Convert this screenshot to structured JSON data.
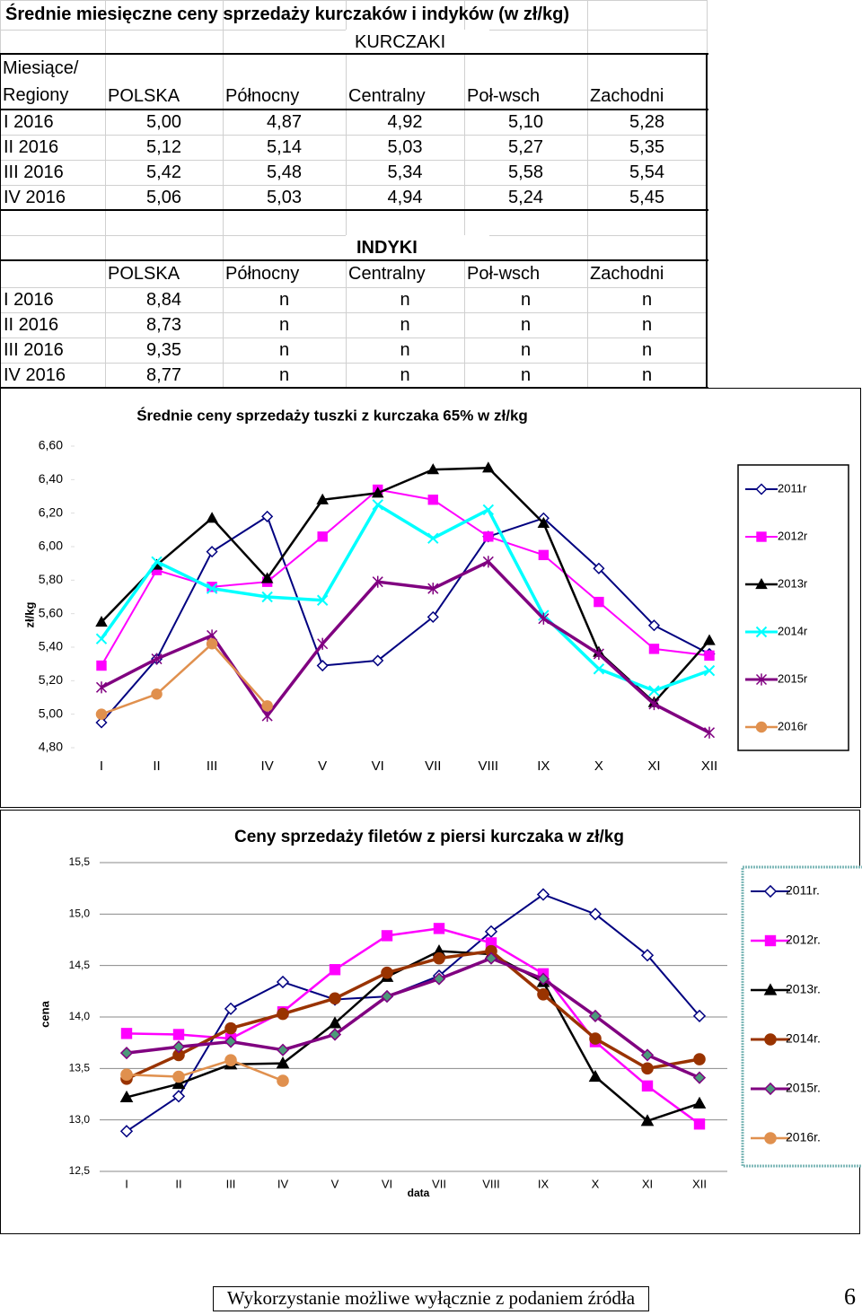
{
  "title": "Średnie miesięczne ceny sprzedaży kurczaków  i indyków (w zł/kg)",
  "sections": [
    {
      "heading": "KURCZAKI",
      "corner": "Miesiące/ Regiony",
      "columns": [
        "POLSKA",
        "Północny",
        "Centralny",
        "Poł-wsch",
        "Zachodni"
      ],
      "rows": [
        [
          "I 2016",
          "5,00",
          "4,87",
          "4,92",
          "5,10",
          "5,28"
        ],
        [
          "II 2016",
          "5,12",
          "5,14",
          "5,03",
          "5,27",
          "5,35"
        ],
        [
          "III 2016",
          "5,42",
          "5,48",
          "5,34",
          "5,58",
          "5,54"
        ],
        [
          "IV 2016",
          "5,06",
          "5,03",
          "4,94",
          "5,24",
          "5,45"
        ]
      ]
    },
    {
      "heading": "INDYKI",
      "columns": [
        "POLSKA",
        "Północny",
        "Centralny",
        "Poł-wsch",
        "Zachodni"
      ],
      "rows": [
        [
          "I 2016",
          "8,84",
          "n",
          "n",
          "n",
          "n"
        ],
        [
          "II 2016",
          "8,73",
          "n",
          "n",
          "n",
          "n"
        ],
        [
          "III 2016",
          "9,35",
          "n",
          "n",
          "n",
          "n"
        ],
        [
          "IV 2016",
          "8,77",
          "n",
          "n",
          "n",
          "n"
        ]
      ]
    }
  ],
  "chart_data": [
    {
      "type": "line",
      "title": "Średnie ceny sprzedaży tuszki z kurczaka 65% w zł/kg",
      "y_label": "zł/kg",
      "categories": [
        "I",
        "II",
        "III",
        "IV",
        "V",
        "VI",
        "VII",
        "VIII",
        "IX",
        "X",
        "XI",
        "XII"
      ],
      "ylim": [
        4.8,
        6.6
      ],
      "yticks": [
        {
          "value": 4.8,
          "label": "4,80"
        },
        {
          "value": 5.0,
          "label": "5,00"
        },
        {
          "value": 5.2,
          "label": "5,20"
        },
        {
          "value": 5.4,
          "label": "5,40"
        },
        {
          "value": 5.6,
          "label": "5,60"
        },
        {
          "value": 5.8,
          "label": "5,80"
        },
        {
          "value": 6.0,
          "label": "6,00"
        },
        {
          "value": 6.2,
          "label": "6,20"
        },
        {
          "value": 6.4,
          "label": "6,40"
        },
        {
          "value": 6.6,
          "label": "6,60"
        }
      ],
      "grid": false,
      "legend": "right",
      "series": [
        {
          "name": "2011r",
          "color": "#000080",
          "marker": "diamond",
          "line_width": 2,
          "values": [
            4.95,
            5.33,
            5.97,
            6.18,
            5.29,
            5.32,
            5.58,
            6.06,
            6.17,
            5.87,
            5.53,
            5.36
          ]
        },
        {
          "name": "2012r",
          "color": "#ff00ff",
          "marker": "square",
          "line_width": 2,
          "values": [
            5.29,
            5.86,
            5.76,
            5.79,
            6.06,
            6.34,
            6.28,
            6.06,
            5.95,
            5.67,
            5.39,
            5.35
          ]
        },
        {
          "name": "2013r",
          "color": "#000000",
          "marker": "triangle",
          "line_width": 2.5,
          "values": [
            5.55,
            5.89,
            6.17,
            5.81,
            6.28,
            6.32,
            6.46,
            6.47,
            6.14,
            5.37,
            5.07,
            5.44
          ]
        },
        {
          "name": "2014r",
          "color": "#00ffff",
          "marker": "x",
          "line_width": 3.5,
          "values": [
            5.45,
            5.91,
            5.75,
            5.7,
            5.68,
            6.25,
            6.05,
            6.22,
            5.59,
            5.27,
            5.14,
            5.26
          ]
        },
        {
          "name": "2015r",
          "color": "#800080",
          "marker": "star",
          "line_width": 3.5,
          "values": [
            5.16,
            5.33,
            5.47,
            4.99,
            5.42,
            5.79,
            5.75,
            5.91,
            5.57,
            5.36,
            5.06,
            4.89
          ]
        },
        {
          "name": "2016r",
          "color": "#e0904e",
          "marker": "circle",
          "line_width": 2.5,
          "values": [
            5.0,
            5.12,
            5.42,
            5.05,
            null,
            null,
            null,
            null,
            null,
            null,
            null,
            null
          ]
        }
      ]
    },
    {
      "type": "line",
      "title": "Ceny sprzedaży filetów z piersi kurczaka w zł/kg",
      "y_label": "cena",
      "x_label": "data",
      "categories": [
        "I",
        "II",
        "III",
        "IV",
        "V",
        "VI",
        "VII",
        "VIII",
        "IX",
        "X",
        "XI",
        "XII"
      ],
      "ylim": [
        12.5,
        15.5
      ],
      "yticks": [
        {
          "value": 12.5,
          "label": "12,5"
        },
        {
          "value": 13.0,
          "label": "13,0"
        },
        {
          "value": 13.5,
          "label": "13,5"
        },
        {
          "value": 14.0,
          "label": "14,0"
        },
        {
          "value": 14.5,
          "label": "14,5"
        },
        {
          "value": 15.0,
          "label": "15,0"
        },
        {
          "value": 15.5,
          "label": "15,5"
        }
      ],
      "grid": true,
      "legend": "right",
      "series": [
        {
          "name": "2011r.",
          "color": "#000080",
          "marker": "diamond",
          "line_width": 2,
          "values": [
            12.89,
            13.23,
            14.08,
            14.34,
            14.17,
            14.2,
            14.4,
            14.83,
            15.19,
            15.0,
            14.6,
            14.01
          ]
        },
        {
          "name": "2012r.",
          "color": "#ff00ff",
          "marker": "square",
          "line_width": 2.5,
          "values": [
            13.84,
            13.83,
            13.79,
            14.05,
            14.46,
            14.79,
            14.86,
            14.72,
            14.42,
            13.76,
            13.33,
            12.96
          ]
        },
        {
          "name": "2013r.",
          "color": "#000000",
          "marker": "triangle",
          "line_width": 2.5,
          "values": [
            13.22,
            13.35,
            13.54,
            13.55,
            13.94,
            14.39,
            14.64,
            14.61,
            14.34,
            13.42,
            12.99,
            13.16
          ]
        },
        {
          "name": "2014r.",
          "color": "#993300",
          "marker": "circle",
          "line_width": 3.5,
          "values": [
            13.4,
            13.63,
            13.89,
            14.03,
            14.18,
            14.43,
            14.57,
            14.64,
            14.22,
            13.79,
            13.5,
            13.59
          ]
        },
        {
          "name": "2015r.",
          "color": "#800080",
          "marker": "diamond",
          "marker_color": "#4c9a7a",
          "line_width": 3.5,
          "values": [
            13.65,
            13.71,
            13.76,
            13.68,
            13.83,
            14.2,
            14.37,
            14.57,
            14.37,
            14.01,
            13.63,
            13.41
          ]
        },
        {
          "name": "2016r.",
          "color": "#e0904e",
          "marker": "circle",
          "line_width": 2.5,
          "values": [
            13.44,
            13.42,
            13.58,
            13.38,
            null,
            null,
            null,
            null,
            null,
            null,
            null,
            null
          ]
        }
      ]
    }
  ],
  "footer": {
    "note": "Wykorzystanie możliwe wyłącznie z podaniem źródła",
    "page": "6"
  }
}
